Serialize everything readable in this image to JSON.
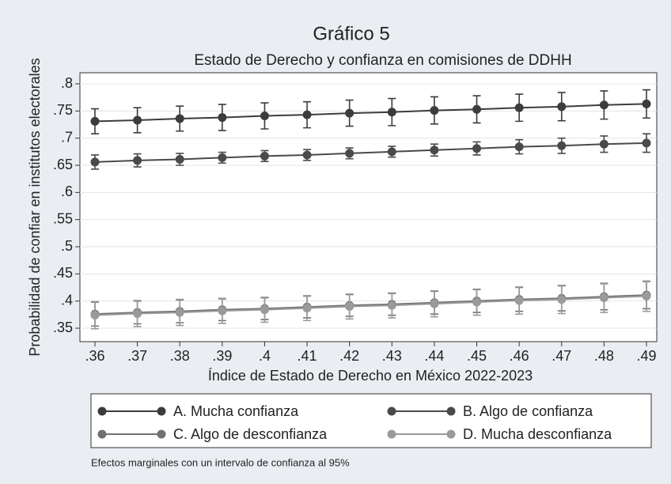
{
  "chart_data": {
    "type": "line",
    "title": "Gráfico 5",
    "subtitle": "Estado de Derecho y confianza en comisiones de DDHH",
    "x_label": "Índice de Estado de Derecho en México 2022-2023",
    "y_label": "Probabilidad de confiar en institutos electorales",
    "note": "Efectos marginales con un intervalo de confianza al 95%",
    "x": [
      0.36,
      0.37,
      0.38,
      0.39,
      0.4,
      0.41,
      0.42,
      0.43,
      0.44,
      0.45,
      0.46,
      0.47,
      0.48,
      0.49
    ],
    "xlim": [
      0.36,
      0.49
    ],
    "xticks": [
      {
        "value": 0.36,
        "label": ".36"
      },
      {
        "value": 0.37,
        "label": ".37"
      },
      {
        "value": 0.38,
        "label": ".38"
      },
      {
        "value": 0.39,
        "label": ".39"
      },
      {
        "value": 0.4,
        "label": ".4"
      },
      {
        "value": 0.41,
        "label": ".41"
      },
      {
        "value": 0.42,
        "label": ".42"
      },
      {
        "value": 0.43,
        "label": ".43"
      },
      {
        "value": 0.44,
        "label": ".44"
      },
      {
        "value": 0.45,
        "label": ".45"
      },
      {
        "value": 0.46,
        "label": ".46"
      },
      {
        "value": 0.47,
        "label": ".47"
      },
      {
        "value": 0.48,
        "label": ".48"
      },
      {
        "value": 0.49,
        "label": ".49"
      }
    ],
    "ylim": [
      0.35,
      0.8
    ],
    "yticks": [
      {
        "value": 0.35,
        "label": ".35"
      },
      {
        "value": 0.4,
        "label": ".4"
      },
      {
        "value": 0.45,
        "label": ".45"
      },
      {
        "value": 0.5,
        "label": ".5"
      },
      {
        "value": 0.55,
        "label": ".55"
      },
      {
        "value": 0.6,
        "label": ".6"
      },
      {
        "value": 0.65,
        "label": ".65"
      },
      {
        "value": 0.7,
        "label": ".7"
      },
      {
        "value": 0.75,
        "label": ".75"
      },
      {
        "value": 0.8,
        "label": ".8"
      }
    ],
    "grid": true,
    "legend": "bottom",
    "series": [
      {
        "name": "A. Mucha confianza",
        "color": "#3c3c3c",
        "values": [
          0.731,
          0.733,
          0.736,
          0.738,
          0.741,
          0.743,
          0.746,
          0.748,
          0.751,
          0.753,
          0.756,
          0.758,
          0.761,
          0.763
        ],
        "errors": [
          0.023,
          0.023,
          0.023,
          0.024,
          0.024,
          0.024,
          0.024,
          0.025,
          0.025,
          0.025,
          0.025,
          0.026,
          0.026,
          0.026
        ]
      },
      {
        "name": "B. Algo de confianza",
        "color": "#4a4a4a",
        "values": [
          0.656,
          0.659,
          0.661,
          0.664,
          0.667,
          0.669,
          0.672,
          0.675,
          0.678,
          0.681,
          0.684,
          0.686,
          0.689,
          0.691
        ],
        "errors": [
          0.013,
          0.012,
          0.011,
          0.01,
          0.01,
          0.01,
          0.01,
          0.01,
          0.011,
          0.012,
          0.013,
          0.014,
          0.015,
          0.017
        ]
      },
      {
        "name": "C. Algo de desconfianza",
        "color": "#707070",
        "values": [
          0.376,
          0.379,
          0.381,
          0.384,
          0.386,
          0.389,
          0.392,
          0.394,
          0.397,
          0.4,
          0.403,
          0.405,
          0.408,
          0.411
        ],
        "errors": [
          0.022,
          0.021,
          0.021,
          0.02,
          0.02,
          0.02,
          0.02,
          0.02,
          0.021,
          0.021,
          0.022,
          0.023,
          0.024,
          0.025
        ]
      },
      {
        "name": "D. Mucha desconfianza",
        "color": "#9a9a9a",
        "values": [
          0.374,
          0.377,
          0.379,
          0.382,
          0.384,
          0.387,
          0.39,
          0.392,
          0.395,
          0.398,
          0.401,
          0.403,
          0.406,
          0.409
        ],
        "errors": [
          0.025,
          0.024,
          0.024,
          0.023,
          0.023,
          0.023,
          0.023,
          0.023,
          0.024,
          0.024,
          0.025,
          0.026,
          0.027,
          0.028
        ]
      }
    ]
  }
}
